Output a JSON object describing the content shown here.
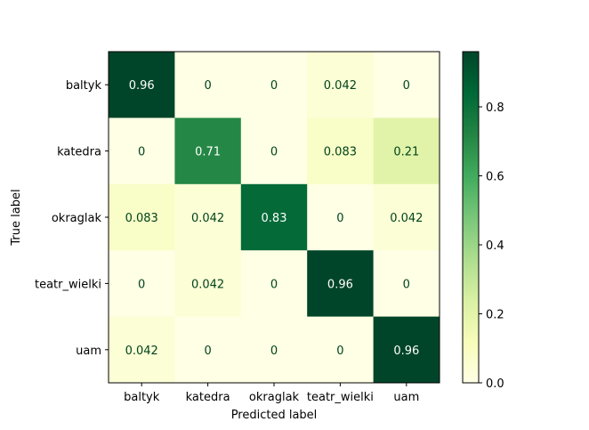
{
  "chart_data": {
    "type": "heatmap",
    "title": "",
    "xlabel": "Predicted label",
    "ylabel": "True label",
    "x_categories": [
      "baltyk",
      "katedra",
      "okraglak",
      "teatr_wielki",
      "uam"
    ],
    "y_categories": [
      "baltyk",
      "katedra",
      "okraglak",
      "teatr_wielki",
      "uam"
    ],
    "values": [
      [
        0.96,
        0,
        0,
        0.042,
        0
      ],
      [
        0,
        0.71,
        0,
        0.083,
        0.21
      ],
      [
        0.083,
        0.042,
        0.83,
        0,
        0.042
      ],
      [
        0,
        0.042,
        0,
        0.96,
        0
      ],
      [
        0.042,
        0,
        0,
        0,
        0.96
      ]
    ],
    "value_labels": [
      [
        "0.96",
        "0",
        "0",
        "0.042",
        "0"
      ],
      [
        "0",
        "0.71",
        "0",
        "0.083",
        "0.21"
      ],
      [
        "0.083",
        "0.042",
        "0.83",
        "0",
        "0.042"
      ],
      [
        "0",
        "0.042",
        "0",
        "0.96",
        "0"
      ],
      [
        "0.042",
        "0",
        "0",
        "0",
        "0.96"
      ]
    ],
    "colormap": "YlGn",
    "colorbar": {
      "range": [
        0,
        0.96
      ],
      "ticks": [
        0.0,
        0.2,
        0.4,
        0.6,
        0.8
      ],
      "tick_labels": [
        "0.0",
        "0.2",
        "0.4",
        "0.6",
        "0.8"
      ]
    },
    "grid": false
  }
}
